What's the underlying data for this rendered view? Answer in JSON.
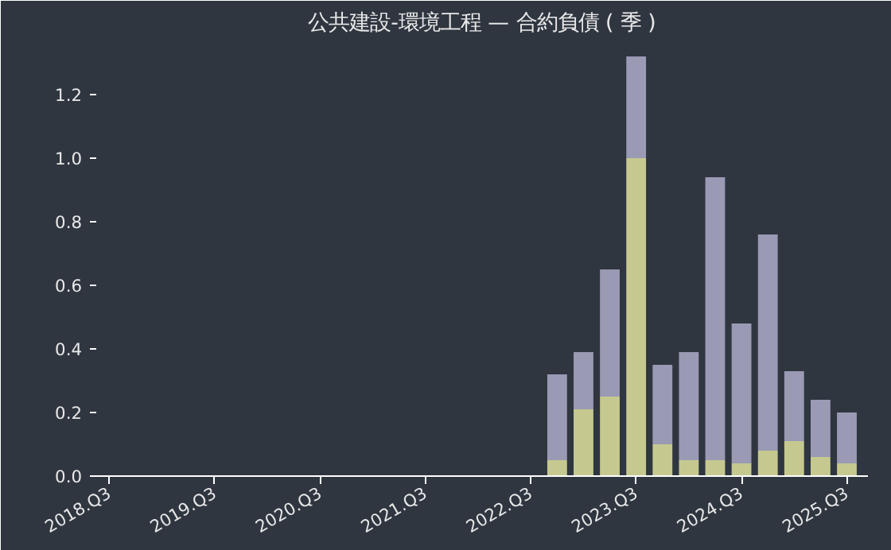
{
  "chart_data": {
    "type": "bar",
    "title": "公共建設-環境工程 — 合約負債 ( 季 )",
    "stacked": true,
    "categories": [
      "2018.Q3",
      null,
      null,
      null,
      "2019.Q3",
      null,
      null,
      null,
      "2020.Q3",
      null,
      null,
      null,
      "2021.Q3",
      null,
      null,
      null,
      "2022.Q3",
      null,
      null,
      null,
      "2023.Q3",
      null,
      null,
      null,
      "2024.Q3",
      null,
      null,
      null,
      "2025.Q3"
    ],
    "series": [
      {
        "color": "#c5c98f",
        "values": [
          null,
          null,
          null,
          null,
          null,
          null,
          null,
          null,
          null,
          null,
          null,
          null,
          null,
          null,
          null,
          null,
          null,
          0.05,
          0.21,
          0.25,
          1.0,
          0.1,
          0.05,
          0.05,
          0.04,
          0.08,
          0.11,
          0.06,
          0.04
        ]
      },
      {
        "color": "#9a9ab4",
        "values": [
          null,
          null,
          null,
          null,
          null,
          null,
          null,
          null,
          null,
          null,
          null,
          null,
          null,
          null,
          null,
          null,
          null,
          0.27,
          0.18,
          0.4,
          0.32,
          0.25,
          0.34,
          0.89,
          0.44,
          0.68,
          0.22,
          0.18,
          0.16
        ]
      }
    ],
    "ylim": [
      0,
      1.36
    ],
    "yticks": [
      {
        "value": 0,
        "label": "0.0"
      },
      {
        "value": 0.2,
        "label": "0.2"
      },
      {
        "value": 0.4,
        "label": "0.4"
      },
      {
        "value": 0.6,
        "label": "0.6"
      },
      {
        "value": 0.8,
        "label": "0.8"
      },
      {
        "value": 1.0,
        "label": "1.0"
      },
      {
        "value": 1.2,
        "label": "1.2"
      }
    ],
    "grid": false
  }
}
